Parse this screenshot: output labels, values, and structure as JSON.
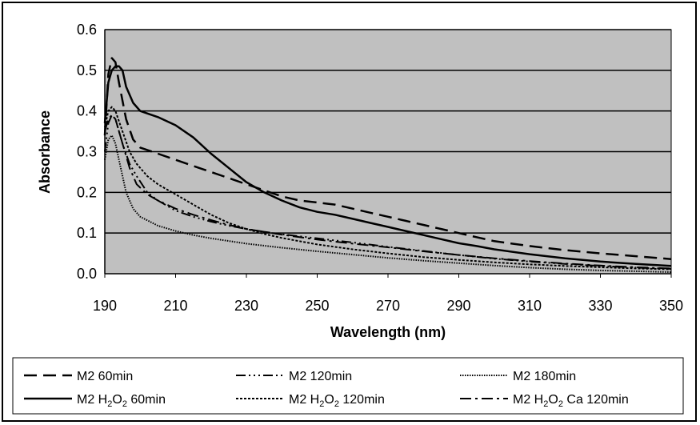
{
  "chart_data": {
    "type": "line",
    "title": "",
    "xlabel": "Wavelength (nm)",
    "ylabel": "Absorbance",
    "xlim": [
      190,
      350
    ],
    "ylim": [
      0.0,
      0.6
    ],
    "x_ticks": [
      "190",
      "210",
      "230",
      "250",
      "270",
      "290",
      "310",
      "330",
      "350"
    ],
    "y_ticks": [
      "0.0",
      "0.1",
      "0.2",
      "0.3",
      "0.4",
      "0.5",
      "0.6"
    ],
    "grid": "horizontal",
    "legend_position": "bottom",
    "series": [
      {
        "name": "M2 60min",
        "legend": {
          "pre": "M2 60min",
          "sub": "",
          "post": "",
          "sub2": "",
          "post2": ""
        },
        "dash": "16,8",
        "width": 2.5,
        "points": [
          [
            190,
            0.34
          ],
          [
            191,
            0.49
          ],
          [
            192,
            0.53
          ],
          [
            193,
            0.52
          ],
          [
            194,
            0.47
          ],
          [
            196,
            0.38
          ],
          [
            198,
            0.33
          ],
          [
            200,
            0.31
          ],
          [
            205,
            0.295
          ],
          [
            210,
            0.28
          ],
          [
            215,
            0.265
          ],
          [
            220,
            0.25
          ],
          [
            225,
            0.235
          ],
          [
            230,
            0.22
          ],
          [
            235,
            0.205
          ],
          [
            240,
            0.19
          ],
          [
            245,
            0.18
          ],
          [
            250,
            0.175
          ],
          [
            255,
            0.17
          ],
          [
            260,
            0.16
          ],
          [
            265,
            0.15
          ],
          [
            270,
            0.14
          ],
          [
            275,
            0.13
          ],
          [
            280,
            0.12
          ],
          [
            285,
            0.11
          ],
          [
            290,
            0.1
          ],
          [
            295,
            0.09
          ],
          [
            300,
            0.08
          ],
          [
            310,
            0.068
          ],
          [
            320,
            0.058
          ],
          [
            330,
            0.05
          ],
          [
            340,
            0.043
          ],
          [
            350,
            0.036
          ]
        ]
      },
      {
        "name": "M2 120min",
        "legend": {
          "pre": "M2 120min",
          "sub": "",
          "post": "",
          "sub2": "",
          "post2": ""
        },
        "dash": "12,4,2,4,2,4,2,4",
        "width": 2,
        "points": [
          [
            190,
            0.3
          ],
          [
            191,
            0.37
          ],
          [
            192,
            0.39
          ],
          [
            193,
            0.38
          ],
          [
            195,
            0.32
          ],
          [
            197,
            0.27
          ],
          [
            199,
            0.24
          ],
          [
            202,
            0.2
          ],
          [
            205,
            0.18
          ],
          [
            210,
            0.155
          ],
          [
            215,
            0.14
          ],
          [
            220,
            0.128
          ],
          [
            225,
            0.118
          ],
          [
            230,
            0.11
          ],
          [
            235,
            0.103
          ],
          [
            240,
            0.097
          ],
          [
            250,
            0.087
          ],
          [
            260,
            0.077
          ],
          [
            270,
            0.066
          ],
          [
            280,
            0.056
          ],
          [
            290,
            0.046
          ],
          [
            300,
            0.037
          ],
          [
            310,
            0.03
          ],
          [
            320,
            0.024
          ],
          [
            330,
            0.019
          ],
          [
            340,
            0.015
          ],
          [
            350,
            0.012
          ]
        ]
      },
      {
        "name": "M2 180min",
        "legend": {
          "pre": "M2 180min",
          "sub": "",
          "post": "",
          "sub2": "",
          "post2": ""
        },
        "dash": "1.5,1.5",
        "width": 2,
        "points": [
          [
            190,
            0.28
          ],
          [
            191,
            0.33
          ],
          [
            192,
            0.34
          ],
          [
            193,
            0.32
          ],
          [
            194,
            0.28
          ],
          [
            196,
            0.2
          ],
          [
            198,
            0.16
          ],
          [
            200,
            0.14
          ],
          [
            205,
            0.118
          ],
          [
            210,
            0.105
          ],
          [
            215,
            0.095
          ],
          [
            220,
            0.087
          ],
          [
            230,
            0.074
          ],
          [
            240,
            0.064
          ],
          [
            250,
            0.055
          ],
          [
            260,
            0.047
          ],
          [
            270,
            0.039
          ],
          [
            280,
            0.032
          ],
          [
            290,
            0.026
          ],
          [
            300,
            0.02
          ],
          [
            310,
            0.015
          ],
          [
            320,
            0.011
          ],
          [
            330,
            0.008
          ],
          [
            340,
            0.006
          ],
          [
            350,
            0.004
          ]
        ]
      },
      {
        "name": "M2 H2O2 60min",
        "legend": {
          "pre": "M2 H",
          "sub": "2",
          "post": "O",
          "sub2": "2",
          "post2": " 60min"
        },
        "dash": "",
        "width": 2.5,
        "points": [
          [
            190,
            0.37
          ],
          [
            191,
            0.47
          ],
          [
            192,
            0.5
          ],
          [
            193,
            0.51
          ],
          [
            194,
            0.51
          ],
          [
            195,
            0.5
          ],
          [
            196,
            0.46
          ],
          [
            198,
            0.42
          ],
          [
            200,
            0.4
          ],
          [
            205,
            0.385
          ],
          [
            210,
            0.365
          ],
          [
            215,
            0.335
          ],
          [
            220,
            0.295
          ],
          [
            225,
            0.26
          ],
          [
            230,
            0.225
          ],
          [
            235,
            0.2
          ],
          [
            240,
            0.18
          ],
          [
            245,
            0.163
          ],
          [
            250,
            0.152
          ],
          [
            255,
            0.145
          ],
          [
            260,
            0.135
          ],
          [
            265,
            0.125
          ],
          [
            270,
            0.115
          ],
          [
            275,
            0.105
          ],
          [
            280,
            0.095
          ],
          [
            285,
            0.085
          ],
          [
            290,
            0.075
          ],
          [
            295,
            0.068
          ],
          [
            300,
            0.06
          ],
          [
            310,
            0.048
          ],
          [
            320,
            0.038
          ],
          [
            330,
            0.03
          ],
          [
            340,
            0.024
          ],
          [
            350,
            0.019
          ]
        ]
      },
      {
        "name": "M2 H2O2 120min",
        "legend": {
          "pre": "M2 H",
          "sub": "2",
          "post": "O",
          "sub2": "2",
          "post2": " 120min"
        },
        "dash": "3,2",
        "width": 2,
        "points": [
          [
            190,
            0.36
          ],
          [
            191,
            0.4
          ],
          [
            192,
            0.41
          ],
          [
            193,
            0.4
          ],
          [
            195,
            0.35
          ],
          [
            197,
            0.3
          ],
          [
            199,
            0.27
          ],
          [
            202,
            0.24
          ],
          [
            205,
            0.22
          ],
          [
            210,
            0.195
          ],
          [
            215,
            0.17
          ],
          [
            220,
            0.145
          ],
          [
            225,
            0.125
          ],
          [
            230,
            0.11
          ],
          [
            235,
            0.098
          ],
          [
            240,
            0.088
          ],
          [
            250,
            0.072
          ],
          [
            260,
            0.06
          ],
          [
            270,
            0.05
          ],
          [
            280,
            0.041
          ],
          [
            290,
            0.034
          ],
          [
            300,
            0.028
          ],
          [
            310,
            0.023
          ],
          [
            320,
            0.019
          ],
          [
            330,
            0.016
          ],
          [
            340,
            0.013
          ],
          [
            350,
            0.011
          ]
        ]
      },
      {
        "name": "M2 H2O2 Ca 120min",
        "legend": {
          "pre": "M2 H",
          "sub": "2",
          "post": "O",
          "sub2": "2",
          "post2": " Ca 120min"
        },
        "dash": "14,5,3,5",
        "width": 2,
        "points": [
          [
            190,
            0.35
          ],
          [
            191,
            0.38
          ],
          [
            192,
            0.39
          ],
          [
            193,
            0.38
          ],
          [
            195,
            0.32
          ],
          [
            197,
            0.26
          ],
          [
            199,
            0.22
          ],
          [
            202,
            0.195
          ],
          [
            205,
            0.18
          ],
          [
            210,
            0.16
          ],
          [
            215,
            0.145
          ],
          [
            220,
            0.132
          ],
          [
            225,
            0.12
          ],
          [
            230,
            0.11
          ],
          [
            235,
            0.103
          ],
          [
            240,
            0.096
          ],
          [
            250,
            0.084
          ],
          [
            260,
            0.074
          ],
          [
            270,
            0.065
          ],
          [
            280,
            0.055
          ],
          [
            290,
            0.046
          ],
          [
            300,
            0.038
          ],
          [
            310,
            0.031
          ],
          [
            320,
            0.025
          ],
          [
            330,
            0.02
          ],
          [
            340,
            0.016
          ],
          [
            350,
            0.013
          ]
        ]
      }
    ]
  }
}
